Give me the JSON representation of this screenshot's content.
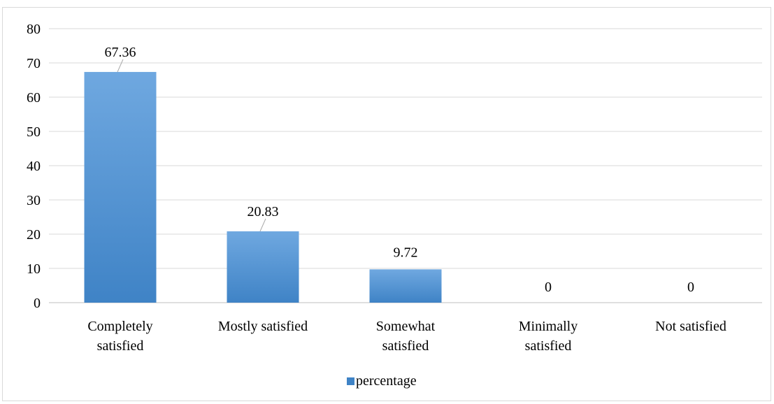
{
  "chart_data": {
    "type": "bar",
    "title": "",
    "xlabel": "",
    "ylabel": "",
    "categories": [
      [
        "Completely",
        "satisfied"
      ],
      [
        "Mostly satisfied"
      ],
      [
        "Somewhat",
        "satisfied"
      ],
      [
        "Minimally",
        "satisfied"
      ],
      [
        "Not satisfied"
      ]
    ],
    "series": [
      {
        "name": "percentage",
        "values": [
          67.36,
          20.83,
          9.72,
          0,
          0
        ]
      }
    ],
    "data_labels": [
      "67.36",
      "20.83",
      "9.72",
      "0",
      "0"
    ],
    "ylim": [
      0,
      80
    ],
    "yticks": [
      "0",
      "10",
      "20",
      "30",
      "40",
      "50",
      "60",
      "70",
      "80"
    ],
    "grid": true,
    "legend_position": "bottom",
    "colors": {
      "bar_top": "#6fa8e0",
      "bar_bottom": "#3f83c6",
      "gridline": "#d9d9d9",
      "axis": "#bfbfbf",
      "leader_line": "#a6a6a6"
    }
  }
}
